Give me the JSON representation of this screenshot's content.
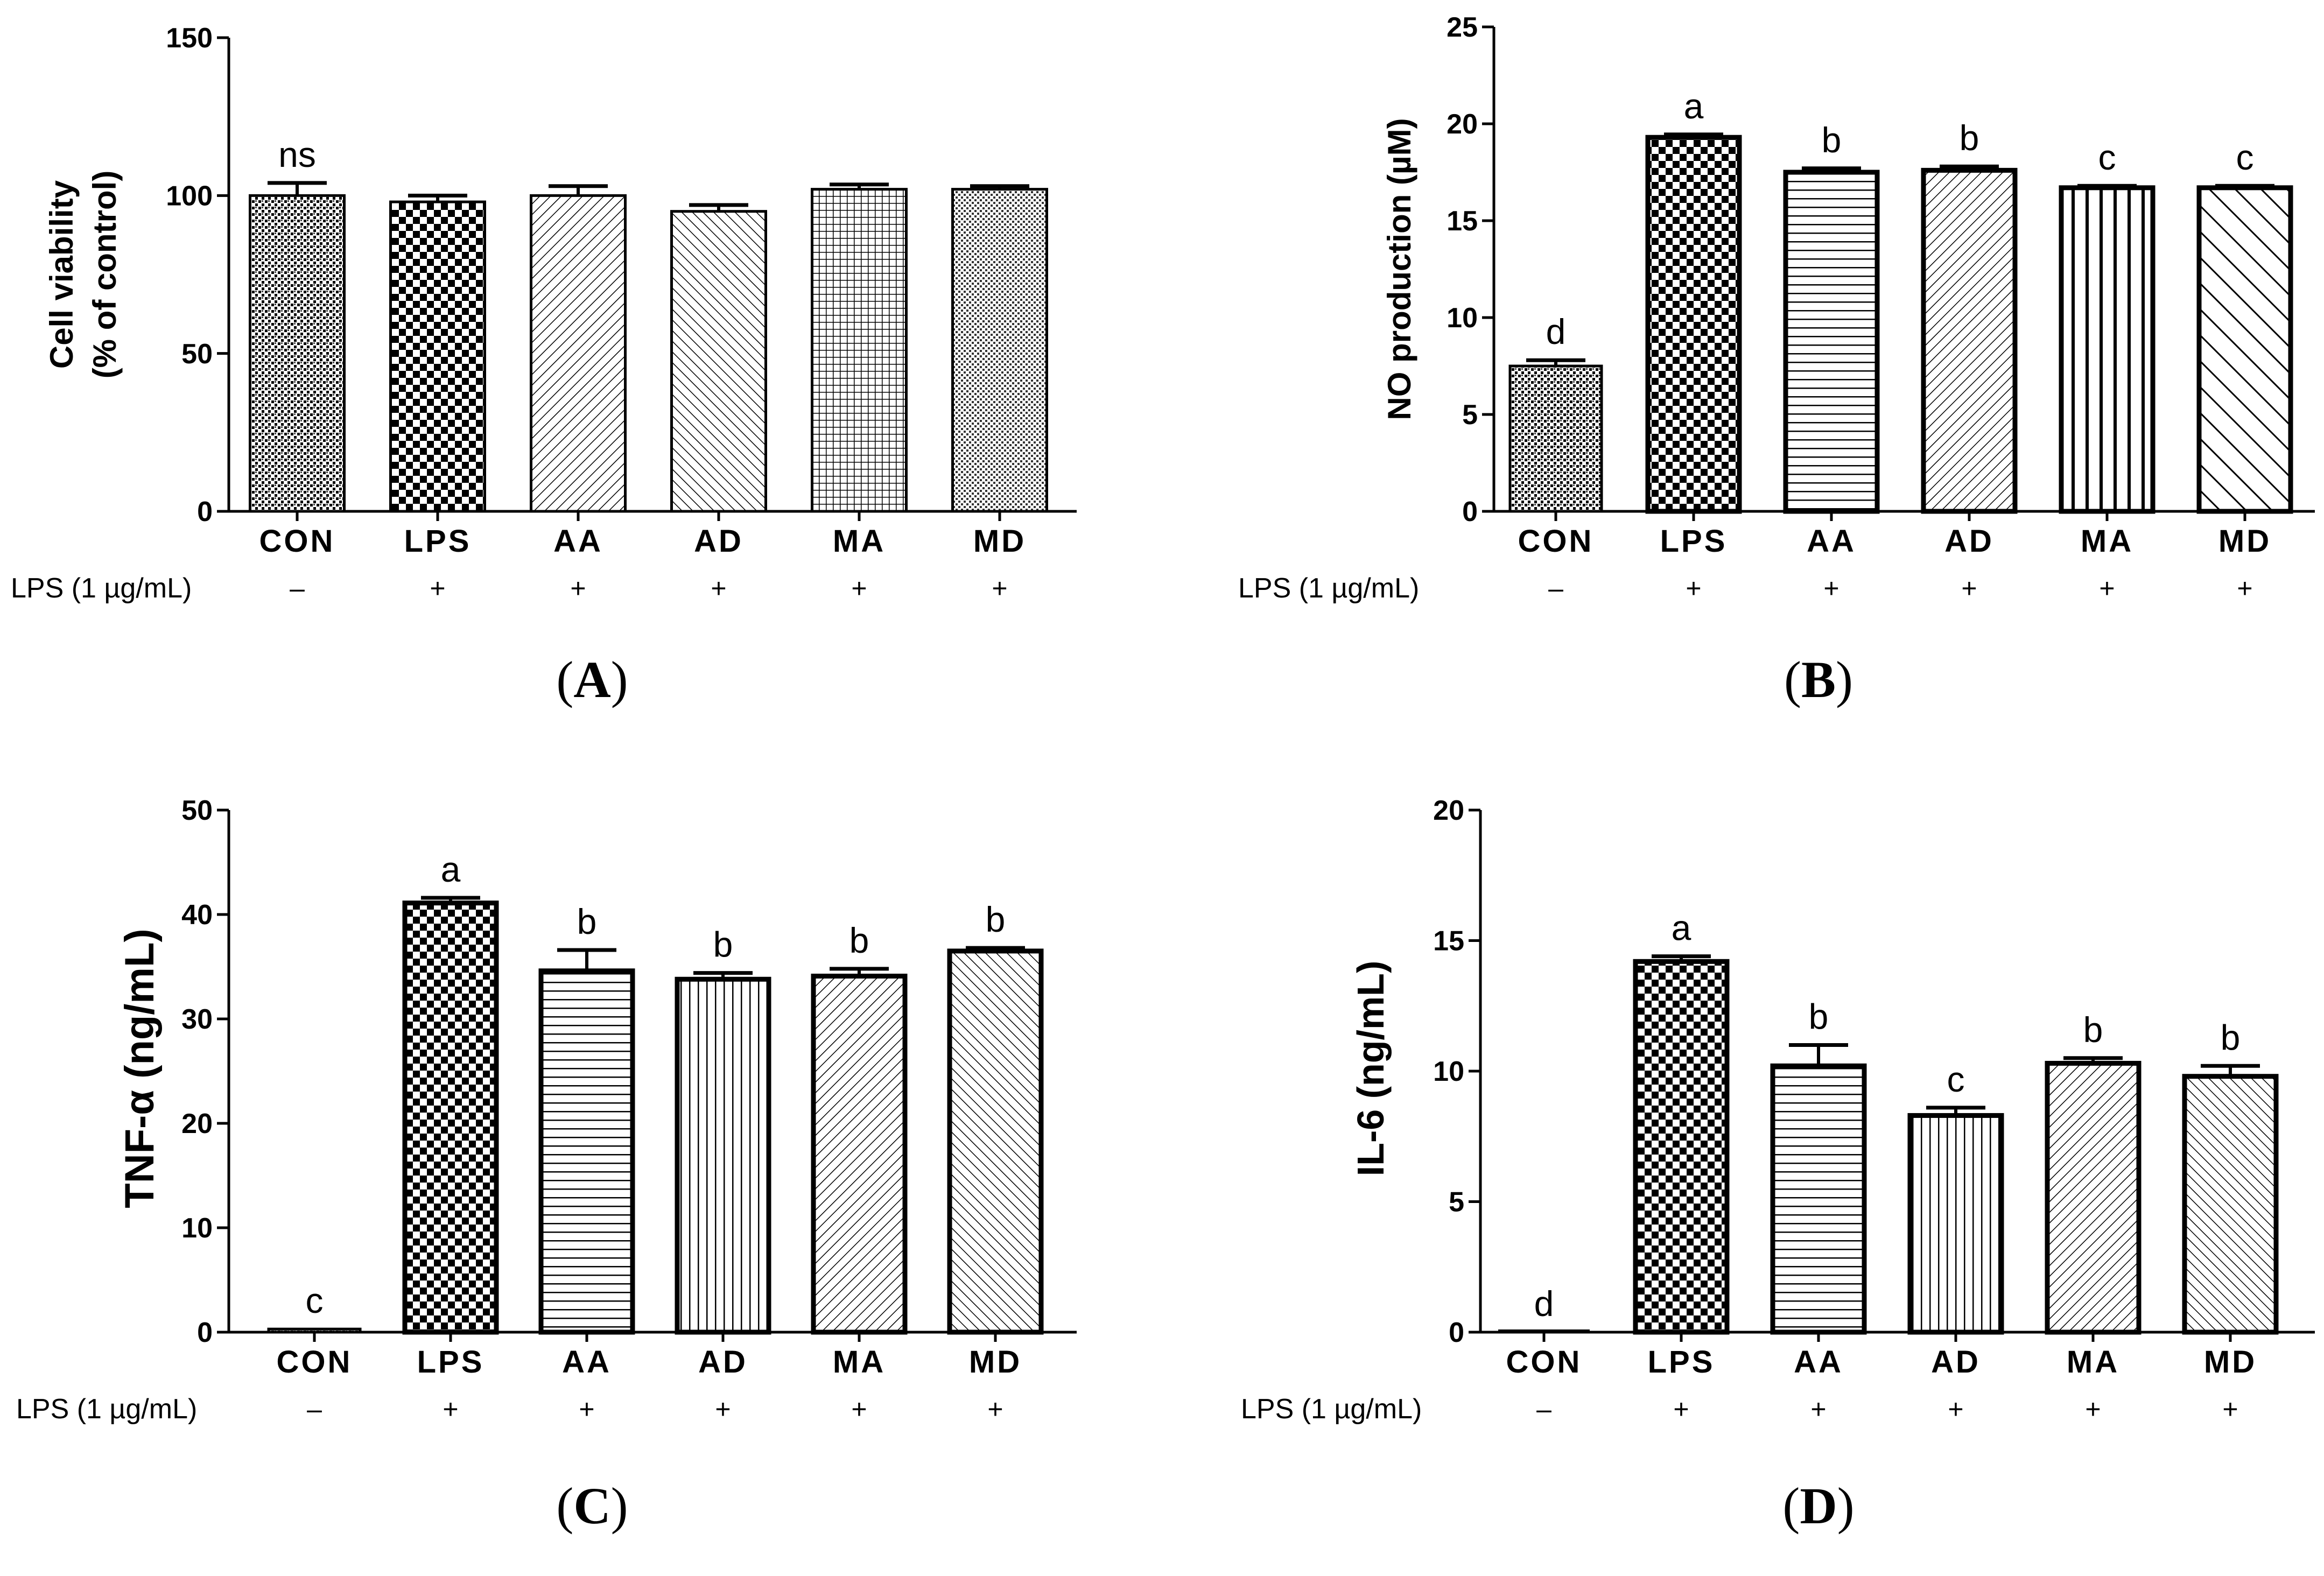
{
  "chart_data": [
    {
      "type": "bar",
      "panel_label": "(A)",
      "panel_letter": "A",
      "ylabel": [
        "Cell viability",
        "(% of control)"
      ],
      "ylabel_bold": true,
      "ylim": [
        0,
        150
      ],
      "yticks": [
        0,
        50,
        100,
        150
      ],
      "categories": [
        "CON",
        "LPS",
        "AA",
        "AD",
        "MA",
        "MD"
      ],
      "values": [
        100,
        98,
        100,
        95,
        102,
        102
      ],
      "errors": [
        4,
        2,
        3,
        2,
        1.5,
        1
      ],
      "sig_labels": [
        "ns",
        "",
        "",
        "",
        "",
        ""
      ],
      "lps_label": "LPS (1 µg/mL)",
      "lps_row": [
        "–",
        "+",
        "+",
        "+",
        "+",
        "+"
      ],
      "patterns": [
        "dots",
        "checker",
        "diag-fine",
        "diag-back",
        "grid",
        "dots-fine"
      ]
    },
    {
      "type": "bar",
      "panel_label": "(B)",
      "panel_letter": "B",
      "ylabel": [
        "NO production (µM)"
      ],
      "ylabel_bold": true,
      "ylim": [
        0,
        25
      ],
      "yticks": [
        0,
        5,
        10,
        15,
        20,
        25
      ],
      "categories": [
        "CON",
        "LPS",
        "AA",
        "AD",
        "MA",
        "MD"
      ],
      "values": [
        7.5,
        19.3,
        17.5,
        17.6,
        16.7,
        16.7
      ],
      "errors": [
        0.3,
        0.15,
        0.2,
        0.2,
        0.1,
        0.1
      ],
      "sig_labels": [
        "d",
        "a",
        "b",
        "b",
        "c",
        "c"
      ],
      "lps_label": "LPS (1 µg/mL)",
      "lps_row": [
        "–",
        "+",
        "+",
        "+",
        "+",
        "+"
      ],
      "patterns": [
        "dots",
        "checker",
        "hlines",
        "diag-fine",
        "vlines-thick",
        "diag-back-wide"
      ]
    },
    {
      "type": "bar",
      "panel_label": "(C)",
      "panel_letter": "C",
      "ylabel": [
        "TNF-α (ng/mL)"
      ],
      "ylabel_bold": true,
      "ylim": [
        0,
        50
      ],
      "yticks": [
        0,
        10,
        20,
        30,
        40,
        50
      ],
      "categories": [
        "CON",
        "LPS",
        "AA",
        "AD",
        "MA",
        "MD"
      ],
      "values": [
        0.3,
        41.1,
        34.6,
        33.8,
        34.1,
        36.5
      ],
      "errors": [
        0,
        0.5,
        2.0,
        0.6,
        0.7,
        0.3
      ],
      "sig_labels": [
        "c",
        "a",
        "b",
        "b",
        "b",
        "b"
      ],
      "lps_label": "LPS (1 µg/mL)",
      "lps_row": [
        "–",
        "+",
        "+",
        "+",
        "+",
        "+"
      ],
      "patterns": [
        "dots",
        "checker",
        "hlines",
        "vlines",
        "diag-fine",
        "diag-back"
      ]
    },
    {
      "type": "bar",
      "panel_label": "(D)",
      "panel_letter": "D",
      "ylabel": [
        "IL-6 (ng/mL)"
      ],
      "ylabel_bold": true,
      "ylim": [
        0,
        20
      ],
      "yticks": [
        0,
        5,
        10,
        15,
        20
      ],
      "categories": [
        "CON",
        "LPS",
        "AA",
        "AD",
        "MA",
        "MD"
      ],
      "values": [
        0,
        14.2,
        10.2,
        8.3,
        10.3,
        9.8
      ],
      "errors": [
        0,
        0.2,
        0.8,
        0.3,
        0.2,
        0.4
      ],
      "sig_labels": [
        "d",
        "a",
        "b",
        "c",
        "b",
        "b"
      ],
      "lps_label": "LPS (1 µg/mL)",
      "lps_row": [
        "–",
        "+",
        "+",
        "+",
        "+",
        "+"
      ],
      "patterns": [
        "dots",
        "checker",
        "hlines",
        "vlines",
        "diag-fine",
        "diag-back"
      ]
    }
  ]
}
